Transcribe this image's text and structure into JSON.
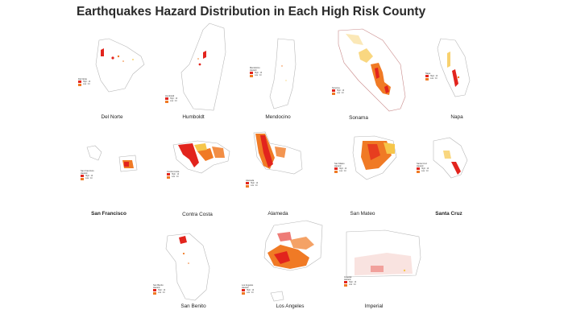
{
  "title": "Earthquakes Hazard Distribution in Each High Risk County",
  "colors": {
    "high": "#e2241d",
    "mid": "#f07a25",
    "low": "#f6c64a",
    "outline": "#b8b8b8"
  },
  "counties": [
    {
      "id": "del-norte",
      "name": "Del Norte",
      "legend": {
        "title": "Del Norte",
        "sub": "",
        "high": "High : 10",
        "low": "Low : 10"
      }
    },
    {
      "id": "humboldt",
      "name": "Humboldt",
      "legend": {
        "title": "Humboldt",
        "sub": "",
        "high": "High : 10",
        "low": "Low : 10"
      }
    },
    {
      "id": "mendocino",
      "name": "Mendocino",
      "legend": {
        "title": "Mendocino",
        "sub": "Hazard",
        "high": "High : 10",
        "low": "Low : 10"
      }
    },
    {
      "id": "sonama",
      "name": "Sonama",
      "legend": {
        "title": "Sonoma",
        "sub": "",
        "high": "High : 10",
        "low": "Low : 10"
      }
    },
    {
      "id": "napa",
      "name": "Napa",
      "legend": {
        "title": "Napa",
        "sub": "",
        "high": "High : 10",
        "low": "Low : 10"
      }
    },
    {
      "id": "san-francisco",
      "name": "San Francisco",
      "bold": true,
      "legend": {
        "title": "San Francisco",
        "sub": "Hazard",
        "high": "High : 10",
        "low": "Low : 10"
      }
    },
    {
      "id": "contra-costa",
      "name": "Contra Costa",
      "legend": {
        "title": "Contra Costa",
        "sub": "",
        "high": "High : 10",
        "low": "Low : 10"
      }
    },
    {
      "id": "alameda",
      "name": "Alameda",
      "legend": {
        "title": "Alameda",
        "sub": "",
        "high": "High : 10",
        "low": "Low : 10"
      }
    },
    {
      "id": "san-mateo",
      "name": "San Mateo",
      "legend": {
        "title": "San Mateo",
        "sub": "Hazard",
        "high": "High : 10",
        "low": "Low : 10"
      }
    },
    {
      "id": "santa-cruz",
      "name": "Santa Cruz",
      "bold": true,
      "legend": {
        "title": "Santa Cruz",
        "sub": "Hazard",
        "high": "High : 10",
        "low": "Low : 10"
      }
    },
    {
      "id": "san-benito",
      "name": "San Benito",
      "legend": {
        "title": "San Benito",
        "sub": "Hazard",
        "high": "High : 10",
        "low": "Low : 10"
      }
    },
    {
      "id": "los-angeles",
      "name": "Los Angeles",
      "legend": {
        "title": "Los Angeles",
        "sub": "Hazard",
        "high": "High : 10",
        "low": "Low : 10"
      }
    },
    {
      "id": "imperial",
      "name": "Imperial",
      "legend": {
        "title": "Imperial",
        "sub": "Hazard",
        "high": "High : 10",
        "low": "Low : 10"
      }
    }
  ]
}
